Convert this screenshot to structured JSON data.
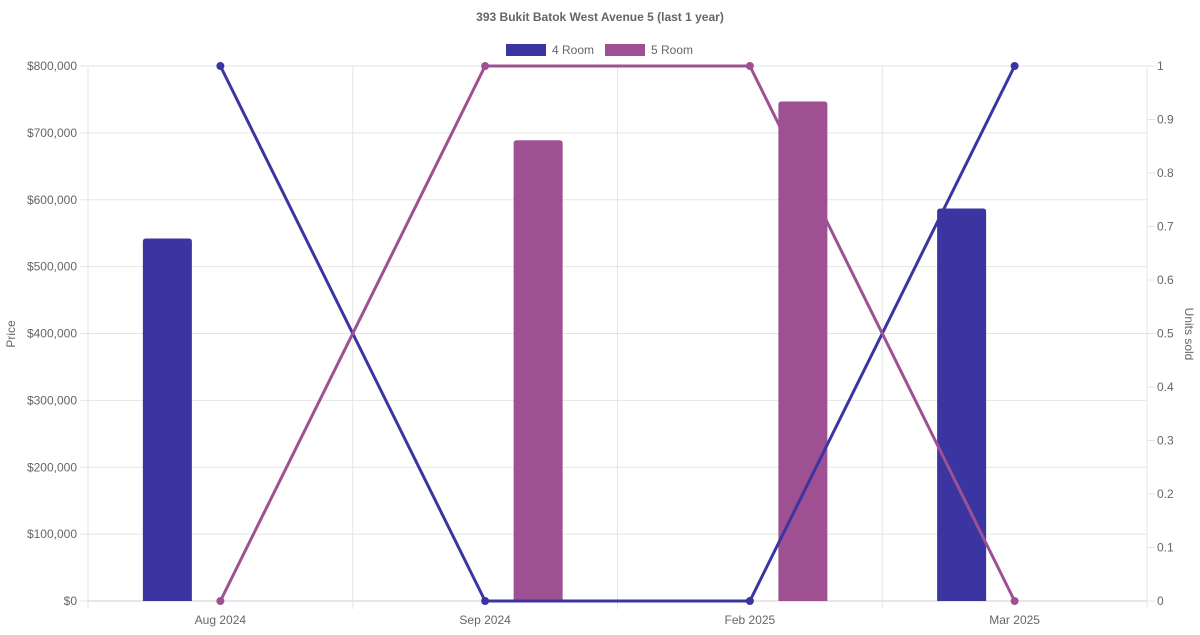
{
  "chart_data": {
    "type": "bar",
    "title": "393 Bukit Batok West Avenue 5 (last 1 year)",
    "categories": [
      "Aug 2024",
      "Sep 2024",
      "Feb 2025",
      "Mar 2025"
    ],
    "y_left": {
      "label": "Price",
      "ylim": [
        0,
        800000
      ],
      "ticks": [
        "$0",
        "$100,000",
        "$200,000",
        "$300,000",
        "$400,000",
        "$500,000",
        "$600,000",
        "$700,000",
        "$800,000"
      ]
    },
    "y_right": {
      "label": "Units sold",
      "ylim": [
        0,
        1
      ],
      "ticks": [
        "0",
        "0.1",
        "0.2",
        "0.3",
        "0.4",
        "0.5",
        "0.6",
        "0.7",
        "0.8",
        "0.9",
        "1"
      ]
    },
    "legend_position": "top-center",
    "grid": true,
    "series": [
      {
        "name": "4 Room",
        "color": "#3a35a1",
        "price": [
          542000,
          null,
          null,
          587000
        ],
        "units": [
          1,
          0,
          0,
          1
        ]
      },
      {
        "name": "5 Room",
        "color": "#9f5093",
        "price": [
          null,
          689000,
          747000,
          null
        ],
        "units": [
          0,
          1,
          1,
          0
        ]
      }
    ]
  }
}
